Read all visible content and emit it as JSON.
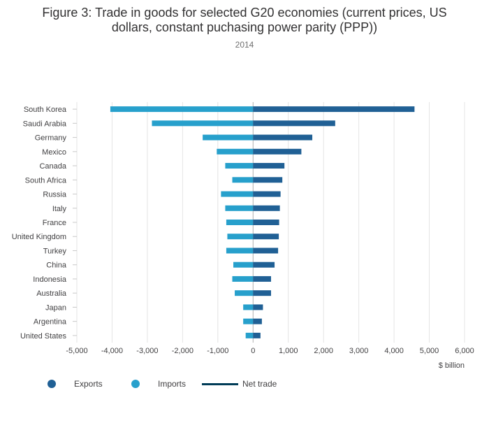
{
  "title_lines": [
    "Figure 3: Trade in goods for selected G20 economies (current prices, US",
    "dollars, constant puchasing power parity (PPP))"
  ],
  "subtitle": "2014",
  "colors": {
    "exports": "#206095",
    "imports": "#27a0cc",
    "net": "#003c57",
    "grid": "#e4e4e4",
    "zero": "#b0b0b0"
  },
  "legend": [
    {
      "label": "Exports",
      "kind": "dot",
      "color_key": "exports"
    },
    {
      "label": "Imports",
      "kind": "dot",
      "color_key": "imports"
    },
    {
      "label": "Net trade",
      "kind": "line",
      "color_key": "net"
    }
  ],
  "chart_data": {
    "type": "bar",
    "orientation": "horizontal",
    "stacked": "diverging",
    "title": "Figure 3: Trade in goods for selected G20 economies (current prices, US dollars, constant puchasing power parity (PPP))",
    "subtitle": "2014",
    "xlabel": "$ billion",
    "ylabel": "",
    "xlim": [
      -5000,
      6000
    ],
    "xticks": [
      -5000,
      -4000,
      -3000,
      -2000,
      -1000,
      0,
      1000,
      2000,
      3000,
      4000,
      5000,
      6000
    ],
    "xtick_labels": [
      "-5,000",
      "-4,000",
      "-3,000",
      "-2,000",
      "-1,000",
      "0",
      "1,000",
      "2,000",
      "3,000",
      "4,000",
      "5,000",
      "6,000"
    ],
    "categories": [
      "South Korea",
      "Saudi Arabia",
      "Germany",
      "Mexico",
      "Canada",
      "South Africa",
      "Russia",
      "Italy",
      "France",
      "United Kingdom",
      "Turkey",
      "China",
      "Indonesia",
      "Australia",
      "Japan",
      "Argentina",
      "United States"
    ],
    "series": [
      {
        "name": "Exports",
        "values": [
          4580,
          2330,
          1680,
          1370,
          890,
          830,
          780,
          760,
          740,
          730,
          710,
          610,
          510,
          510,
          280,
          250,
          210
        ]
      },
      {
        "name": "Imports",
        "values": [
          -4050,
          -2870,
          -1430,
          -1030,
          -790,
          -590,
          -910,
          -790,
          -760,
          -730,
          -760,
          -560,
          -590,
          -520,
          -280,
          -280,
          -210
        ]
      }
    ],
    "legend_position": "bottom-left"
  }
}
